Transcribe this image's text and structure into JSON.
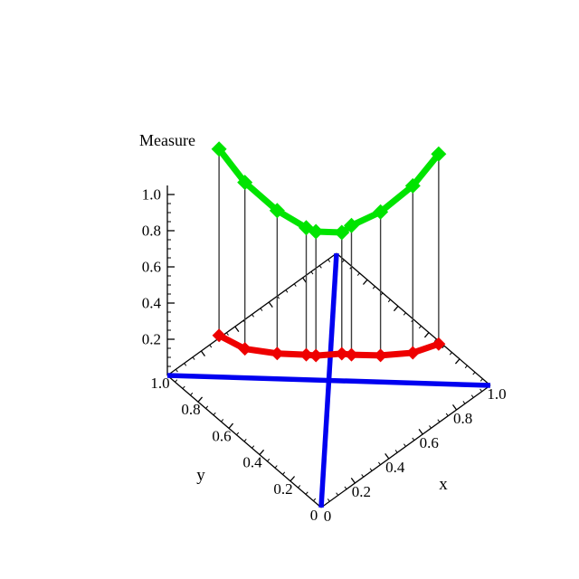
{
  "chart_data": {
    "type": "line",
    "projection": "3d",
    "title": "Measure",
    "zlabel": "Measure",
    "xlabel": "x",
    "ylabel": "y",
    "xlim": [
      0,
      1
    ],
    "ylim": [
      0,
      1
    ],
    "zlim": [
      0,
      1
    ],
    "x_ticks": [
      "0",
      "0.2",
      "0.4",
      "0.6",
      "0.8",
      "1.0"
    ],
    "y_ticks": [
      "0",
      "0.2",
      "0.4",
      "0.6",
      "0.8",
      "1.0"
    ],
    "z_ticks": [
      "0.2",
      "0.4",
      "0.6",
      "0.8",
      "1.0"
    ],
    "minor_tick_step": 0.05,
    "sample_path": "points lie on the base anti-diagonal x + y = 1",
    "x": [
      0.16,
      0.24,
      0.34,
      0.43,
      0.46,
      0.54,
      0.57,
      0.66,
      0.76,
      0.84
    ],
    "series": [
      {
        "name": "green measure curve",
        "color": "#00E400",
        "marker": "diamond",
        "values": [
          1.26,
          1.08,
          0.93,
          0.84,
          0.82,
          0.82,
          0.86,
          0.94,
          1.09,
          1.27
        ]
      },
      {
        "name": "red measure curve",
        "color": "#EE0000",
        "marker": "diamond",
        "values": [
          0.23,
          0.16,
          0.14,
          0.138,
          0.135,
          0.15,
          0.146,
          0.147,
          0.167,
          0.22
        ]
      }
    ],
    "base_diagonals": [
      {
        "name": "main diagonal",
        "from_xy": [
          0,
          0
        ],
        "to_xy": [
          1,
          1
        ],
        "color": "#0000F0"
      },
      {
        "name": "anti diagonal",
        "from_xy": [
          0,
          1
        ],
        "to_xy": [
          1,
          0
        ],
        "color": "#0000F0"
      }
    ],
    "drop_lines": {
      "present": true,
      "color": "#3C3C3C",
      "connects": "green point to red point"
    },
    "colors": {
      "axis": "#000000",
      "green": "#00E400",
      "red": "#EE0000",
      "blue": "#0000F0",
      "drop_line": "#3C3C3C",
      "background": "#FFFFFF"
    }
  }
}
